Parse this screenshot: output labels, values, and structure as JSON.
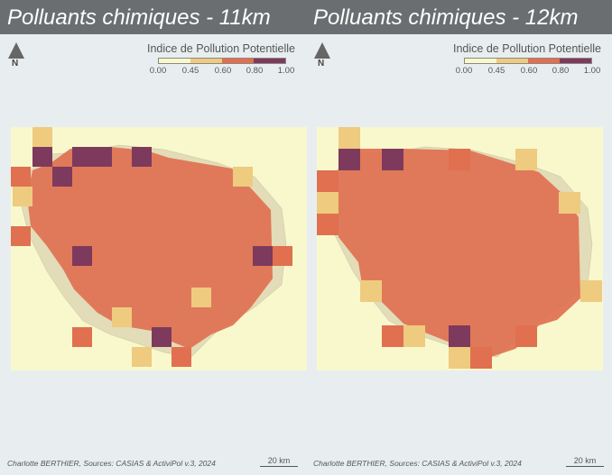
{
  "panels": [
    {
      "title": "Polluants chimiques - 11km",
      "north": "N",
      "legend": {
        "title": "Indice de Pollution Potentielle",
        "ticks": [
          "0.00",
          "0.45",
          "0.60",
          "0.80",
          "1.00"
        ]
      },
      "footer": "Charlotte BERTHIER, Sources: CASIAS & ActiviPol v.3, 2024",
      "scale": "20 km"
    },
    {
      "title": "Polluants chimiques - 12km",
      "north": "N",
      "legend": {
        "title": "Indice de Pollution Potentielle",
        "ticks": [
          "0.00",
          "0.45",
          "0.60",
          "0.80",
          "1.00"
        ]
      },
      "footer": "Charlotte BERTHIER, Sources: CASIAS & ActiviPol v.3, 2024",
      "scale": "20 km"
    }
  ],
  "colors": {
    "title_bar": "#6b6e70",
    "background": "#e8eef0",
    "class_0": "#f8f8cc",
    "class_1": "#eecb7f",
    "class_2": "#e07050",
    "class_3": "#7e3a5c"
  }
}
